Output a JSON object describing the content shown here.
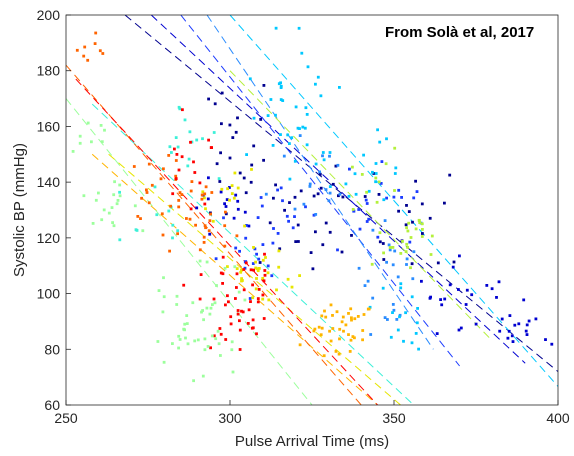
{
  "chart_data": {
    "type": "scatter",
    "xlabel": "Pulse Arrival Time (ms)",
    "ylabel": "Systolic BP (mmHg)",
    "annotation": "From Solà et al, 2017",
    "xlim": [
      250,
      400
    ],
    "ylim": [
      60,
      200
    ],
    "xticks": [
      250,
      300,
      350,
      400
    ],
    "yticks": [
      60,
      80,
      100,
      120,
      140,
      160,
      180,
      200
    ],
    "grid": false,
    "legend": "none",
    "marker": "small-square",
    "trend_style": "dashed",
    "series": [
      {
        "color": "#00008f",
        "trend": [
          [
            268,
            200
          ],
          [
            400,
            72
          ]
        ],
        "clusters": [
          {
            "cx": 302,
            "cy": 150,
            "sx": 5,
            "sy": 12,
            "n": 24
          },
          {
            "cx": 325,
            "cy": 130,
            "sx": 8,
            "sy": 10,
            "n": 26
          },
          {
            "cx": 355,
            "cy": 125,
            "sx": 9,
            "sy": 10,
            "n": 22
          }
        ]
      },
      {
        "color": "#0000d0",
        "trend": [
          [
            276,
            200
          ],
          [
            390,
            75
          ]
        ],
        "clusters": [
          {
            "cx": 298,
            "cy": 135,
            "sx": 4,
            "sy": 6,
            "n": 16
          },
          {
            "cx": 372,
            "cy": 100,
            "sx": 9,
            "sy": 6,
            "n": 24
          },
          {
            "cx": 385,
            "cy": 86,
            "sx": 6,
            "sy": 3,
            "n": 14
          }
        ]
      },
      {
        "color": "#1c3cff",
        "trend": [
          [
            285,
            200
          ],
          [
            370,
            74
          ]
        ],
        "clusters": [
          {
            "cx": 306,
            "cy": 113,
            "sx": 4,
            "sy": 6,
            "n": 18
          },
          {
            "cx": 318,
            "cy": 130,
            "sx": 5,
            "sy": 4,
            "n": 14
          },
          {
            "cx": 345,
            "cy": 132,
            "sx": 6,
            "sy": 8,
            "n": 20
          }
        ]
      },
      {
        "color": "#2a8cff",
        "trend": [
          [
            293,
            200
          ],
          [
            362,
            80
          ]
        ],
        "clusters": [
          {
            "cx": 350,
            "cy": 110,
            "sx": 6,
            "sy": 10,
            "n": 24
          },
          {
            "cx": 325,
            "cy": 140,
            "sx": 6,
            "sy": 8,
            "n": 16
          }
        ]
      },
      {
        "color": "#00c8ff",
        "trend": [
          [
            300,
            200
          ],
          [
            402,
            64
          ]
        ],
        "clusters": [
          {
            "cx": 318,
            "cy": 165,
            "sx": 8,
            "sy": 12,
            "n": 34
          },
          {
            "cx": 340,
            "cy": 145,
            "sx": 8,
            "sy": 8,
            "n": 22
          },
          {
            "cx": 352,
            "cy": 90,
            "sx": 5,
            "sy": 8,
            "n": 16
          }
        ]
      },
      {
        "color": "#3cf0d8",
        "trend": [
          [
            258,
            168
          ],
          [
            356,
            60
          ]
        ],
        "clusters": [
          {
            "cx": 285,
            "cy": 150,
            "sx": 5,
            "sy": 8,
            "n": 16
          },
          {
            "cx": 276,
            "cy": 125,
            "sx": 5,
            "sy": 6,
            "n": 10
          }
        ]
      },
      {
        "color": "#b4f03c",
        "trend": [
          [
            300,
            180
          ],
          [
            380,
            83
          ]
        ],
        "clusters": [
          {
            "cx": 356,
            "cy": 120,
            "sx": 6,
            "sy": 5,
            "n": 24
          },
          {
            "cx": 345,
            "cy": 142,
            "sx": 5,
            "sy": 5,
            "n": 10
          }
        ]
      },
      {
        "color": "#e6e600",
        "trend": [
          [
            263,
            150
          ],
          [
            352,
            60
          ]
        ],
        "clusters": [
          {
            "cx": 309,
            "cy": 107,
            "sx": 5,
            "sy": 5,
            "n": 28
          },
          {
            "cx": 300,
            "cy": 135,
            "sx": 5,
            "sy": 6,
            "n": 14
          }
        ]
      },
      {
        "color": "#ffb400",
        "trend": [
          [
            258,
            150
          ],
          [
            345,
            60
          ]
        ],
        "clusters": [
          {
            "cx": 334,
            "cy": 88,
            "sx": 5,
            "sy": 5,
            "n": 40
          }
        ]
      },
      {
        "color": "#ff6400",
        "trend": [
          [
            250,
            182
          ],
          [
            340,
            60
          ]
        ],
        "clusters": [
          {
            "cx": 290,
            "cy": 125,
            "sx": 5,
            "sy": 8,
            "n": 28
          },
          {
            "cx": 278,
            "cy": 140,
            "sx": 5,
            "sy": 6,
            "n": 18
          },
          {
            "cx": 256,
            "cy": 188,
            "sx": 2,
            "sy": 3,
            "n": 8
          }
        ]
      },
      {
        "color": "#ff0000",
        "trend": [
          [
            253,
            177
          ],
          [
            345,
            60
          ]
        ],
        "clusters": [
          {
            "cx": 302,
            "cy": 98,
            "sx": 6,
            "sy": 10,
            "n": 50
          },
          {
            "cx": 290,
            "cy": 150,
            "sx": 4,
            "sy": 8,
            "n": 16
          }
        ]
      },
      {
        "color": "#9cff9c",
        "trend": [
          [
            250,
            170
          ],
          [
            325,
            60
          ]
        ],
        "clusters": [
          {
            "cx": 290,
            "cy": 90,
            "sx": 6,
            "sy": 10,
            "n": 50
          },
          {
            "cx": 265,
            "cy": 132,
            "sx": 5,
            "sy": 5,
            "n": 18
          },
          {
            "cx": 258,
            "cy": 158,
            "sx": 3,
            "sy": 4,
            "n": 8
          }
        ]
      }
    ]
  }
}
